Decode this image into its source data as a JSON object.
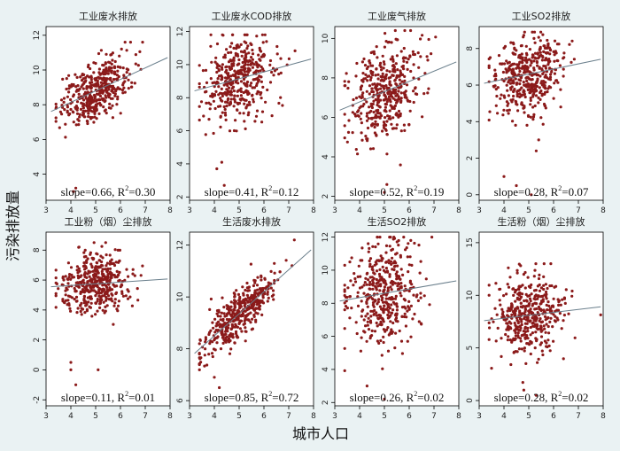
{
  "figure": {
    "xlabel": "城市人口",
    "ylabel": "污染排放量",
    "colors": {
      "background": "#eaf2f3",
      "plot_bg": "#ffffff",
      "marker": "#8b1a1a",
      "fit_line": "#6a7f8c"
    }
  },
  "chart_data": [
    {
      "type": "scatter",
      "title": "工业废水排放",
      "xlim": [
        3,
        8
      ],
      "ylim": [
        2.5,
        12.5
      ],
      "yticks": [
        4,
        6,
        8,
        10,
        12
      ],
      "xticks": [
        3,
        4,
        5,
        6,
        7,
        8
      ],
      "fit": {
        "slope": 0.66,
        "intercept": 5.5
      },
      "x_center": 5.0,
      "x_spread": 0.7,
      "y_noise": 0.8,
      "y_min": 5.8,
      "y_max": 11.6,
      "n": 420,
      "outliers": [
        [
          4.1,
          3.0
        ],
        [
          4.2,
          3.2
        ]
      ],
      "annotation": {
        "slope": "slope=0.66, R",
        "r2": "=0.30",
        "sup": "2"
      }
    },
    {
      "type": "scatter",
      "title": "工业废水COD排放",
      "xlim": [
        3,
        8
      ],
      "ylim": [
        1.8,
        12.3
      ],
      "yticks": [
        2,
        4,
        6,
        8,
        10,
        12
      ],
      "xticks": [
        3,
        4,
        5,
        6,
        7,
        8
      ],
      "fit": {
        "slope": 0.41,
        "intercept": 7.1
      },
      "x_center": 5.0,
      "x_spread": 0.7,
      "y_noise": 1.3,
      "y_min": 4.5,
      "y_max": 11.8,
      "n": 420,
      "outliers": [
        [
          4.1,
          3.7
        ],
        [
          4.3,
          4.1
        ],
        [
          4.4,
          2.7
        ]
      ],
      "annotation": {
        "slope": "slope=0.41, R",
        "r2": "=0.12",
        "sup": "2"
      }
    },
    {
      "type": "scatter",
      "title": "工业废气排放",
      "xlim": [
        3,
        8
      ],
      "ylim": [
        1.8,
        10.6
      ],
      "yticks": [
        2,
        4,
        6,
        8,
        10
      ],
      "xticks": [
        3,
        4,
        5,
        6,
        7,
        8
      ],
      "fit": {
        "slope": 0.52,
        "intercept": 4.7
      },
      "x_center": 5.0,
      "x_spread": 0.7,
      "y_noise": 1.2,
      "y_min": 3.5,
      "y_max": 10.4,
      "n": 420,
      "outliers": [
        [
          5.0,
          2.2
        ],
        [
          5.1,
          2.6
        ]
      ],
      "annotation": {
        "slope": "slope=0.52, R",
        "r2": "=0.19",
        "sup": "2"
      }
    },
    {
      "type": "scatter",
      "title": "工业SO2排放",
      "xlim": [
        3,
        8
      ],
      "ylim": [
        -0.3,
        9.2
      ],
      "yticks": [
        0,
        2,
        4,
        6,
        8
      ],
      "xticks": [
        3,
        4,
        5,
        6,
        7,
        8
      ],
      "fit": {
        "slope": 0.28,
        "intercept": 5.2
      },
      "x_center": 5.0,
      "x_spread": 0.7,
      "y_noise": 1.1,
      "y_min": 3.8,
      "y_max": 8.9,
      "n": 420,
      "outliers": [
        [
          4.0,
          1.0
        ],
        [
          4.5,
          0.5
        ],
        [
          5.4,
          3.0
        ],
        [
          5.3,
          2.4
        ],
        [
          5.1,
          0.0
        ]
      ],
      "annotation": {
        "slope": "slope=0.28, R",
        "r2": "=0.07",
        "sup": "2"
      }
    },
    {
      "type": "scatter",
      "title": "工业粉（烟）尘排放",
      "xlim": [
        3,
        8
      ],
      "ylim": [
        -2.4,
        9.2
      ],
      "yticks": [
        -2,
        0,
        2,
        4,
        6,
        8
      ],
      "xticks": [
        3,
        4,
        5,
        6,
        7,
        8
      ],
      "fit": {
        "slope": 0.11,
        "intercept": 5.2
      },
      "x_center": 5.0,
      "x_spread": 0.7,
      "y_noise": 1.0,
      "y_min": 2.5,
      "y_max": 8.5,
      "n": 420,
      "outliers": [
        [
          4.0,
          0.5
        ],
        [
          4.0,
          0.0
        ],
        [
          4.2,
          -1.0
        ],
        [
          5.1,
          0.0
        ]
      ],
      "annotation": {
        "slope": "slope=0.11, R",
        "r2": "=0.01",
        "sup": "2"
      }
    },
    {
      "type": "scatter",
      "title": "生活废水排放",
      "xlim": [
        3,
        8
      ],
      "ylim": [
        5.8,
        12.5
      ],
      "yticks": [
        6,
        8,
        10,
        12
      ],
      "xticks": [
        3,
        4,
        5,
        6,
        7,
        8
      ],
      "fit": {
        "slope": 0.85,
        "intercept": 5.1
      },
      "x_center": 5.0,
      "x_spread": 0.75,
      "y_noise": 0.45,
      "y_min": 6.8,
      "y_max": 12.2,
      "n": 420,
      "outliers": [
        [
          4.2,
          6.5
        ],
        [
          4.0,
          6.9
        ]
      ],
      "annotation": {
        "slope": "slope=0.85, R",
        "r2": "=0.72",
        "sup": "2"
      }
    },
    {
      "type": "scatter",
      "title": "生活SO2排放",
      "xlim": [
        3,
        8
      ],
      "ylim": [
        1.8,
        12.3
      ],
      "yticks": [
        2,
        4,
        6,
        8,
        10,
        12
      ],
      "xticks": [
        3,
        4,
        5,
        6,
        7,
        8
      ],
      "fit": {
        "slope": 0.26,
        "intercept": 7.3
      },
      "x_center": 5.0,
      "x_spread": 0.7,
      "y_noise": 1.6,
      "y_min": 3.0,
      "y_max": 12.0,
      "n": 420,
      "outliers": [
        [
          5.0,
          2.2
        ],
        [
          4.3,
          3.0
        ]
      ],
      "annotation": {
        "slope": "slope=0.26, R",
        "r2": "=0.02",
        "sup": "2"
      }
    },
    {
      "type": "scatter",
      "title": "生活粉（烟）尘排放",
      "xlim": [
        3,
        8
      ],
      "ylim": [
        -0.5,
        16
      ],
      "yticks": [
        0,
        5,
        10,
        15
      ],
      "xticks": [
        3,
        4,
        5,
        6,
        7,
        8
      ],
      "fit": {
        "slope": 0.28,
        "intercept": 6.7
      },
      "x_center": 5.0,
      "x_spread": 0.7,
      "y_noise": 1.8,
      "y_min": 1.5,
      "y_max": 13.0,
      "n": 420,
      "outliers": [
        [
          5.3,
          0.5
        ],
        [
          4.8,
          1.0
        ]
      ],
      "annotation": {
        "slope": "slope=0.28, R",
        "r2": "=0.02",
        "sup": "2"
      }
    }
  ]
}
